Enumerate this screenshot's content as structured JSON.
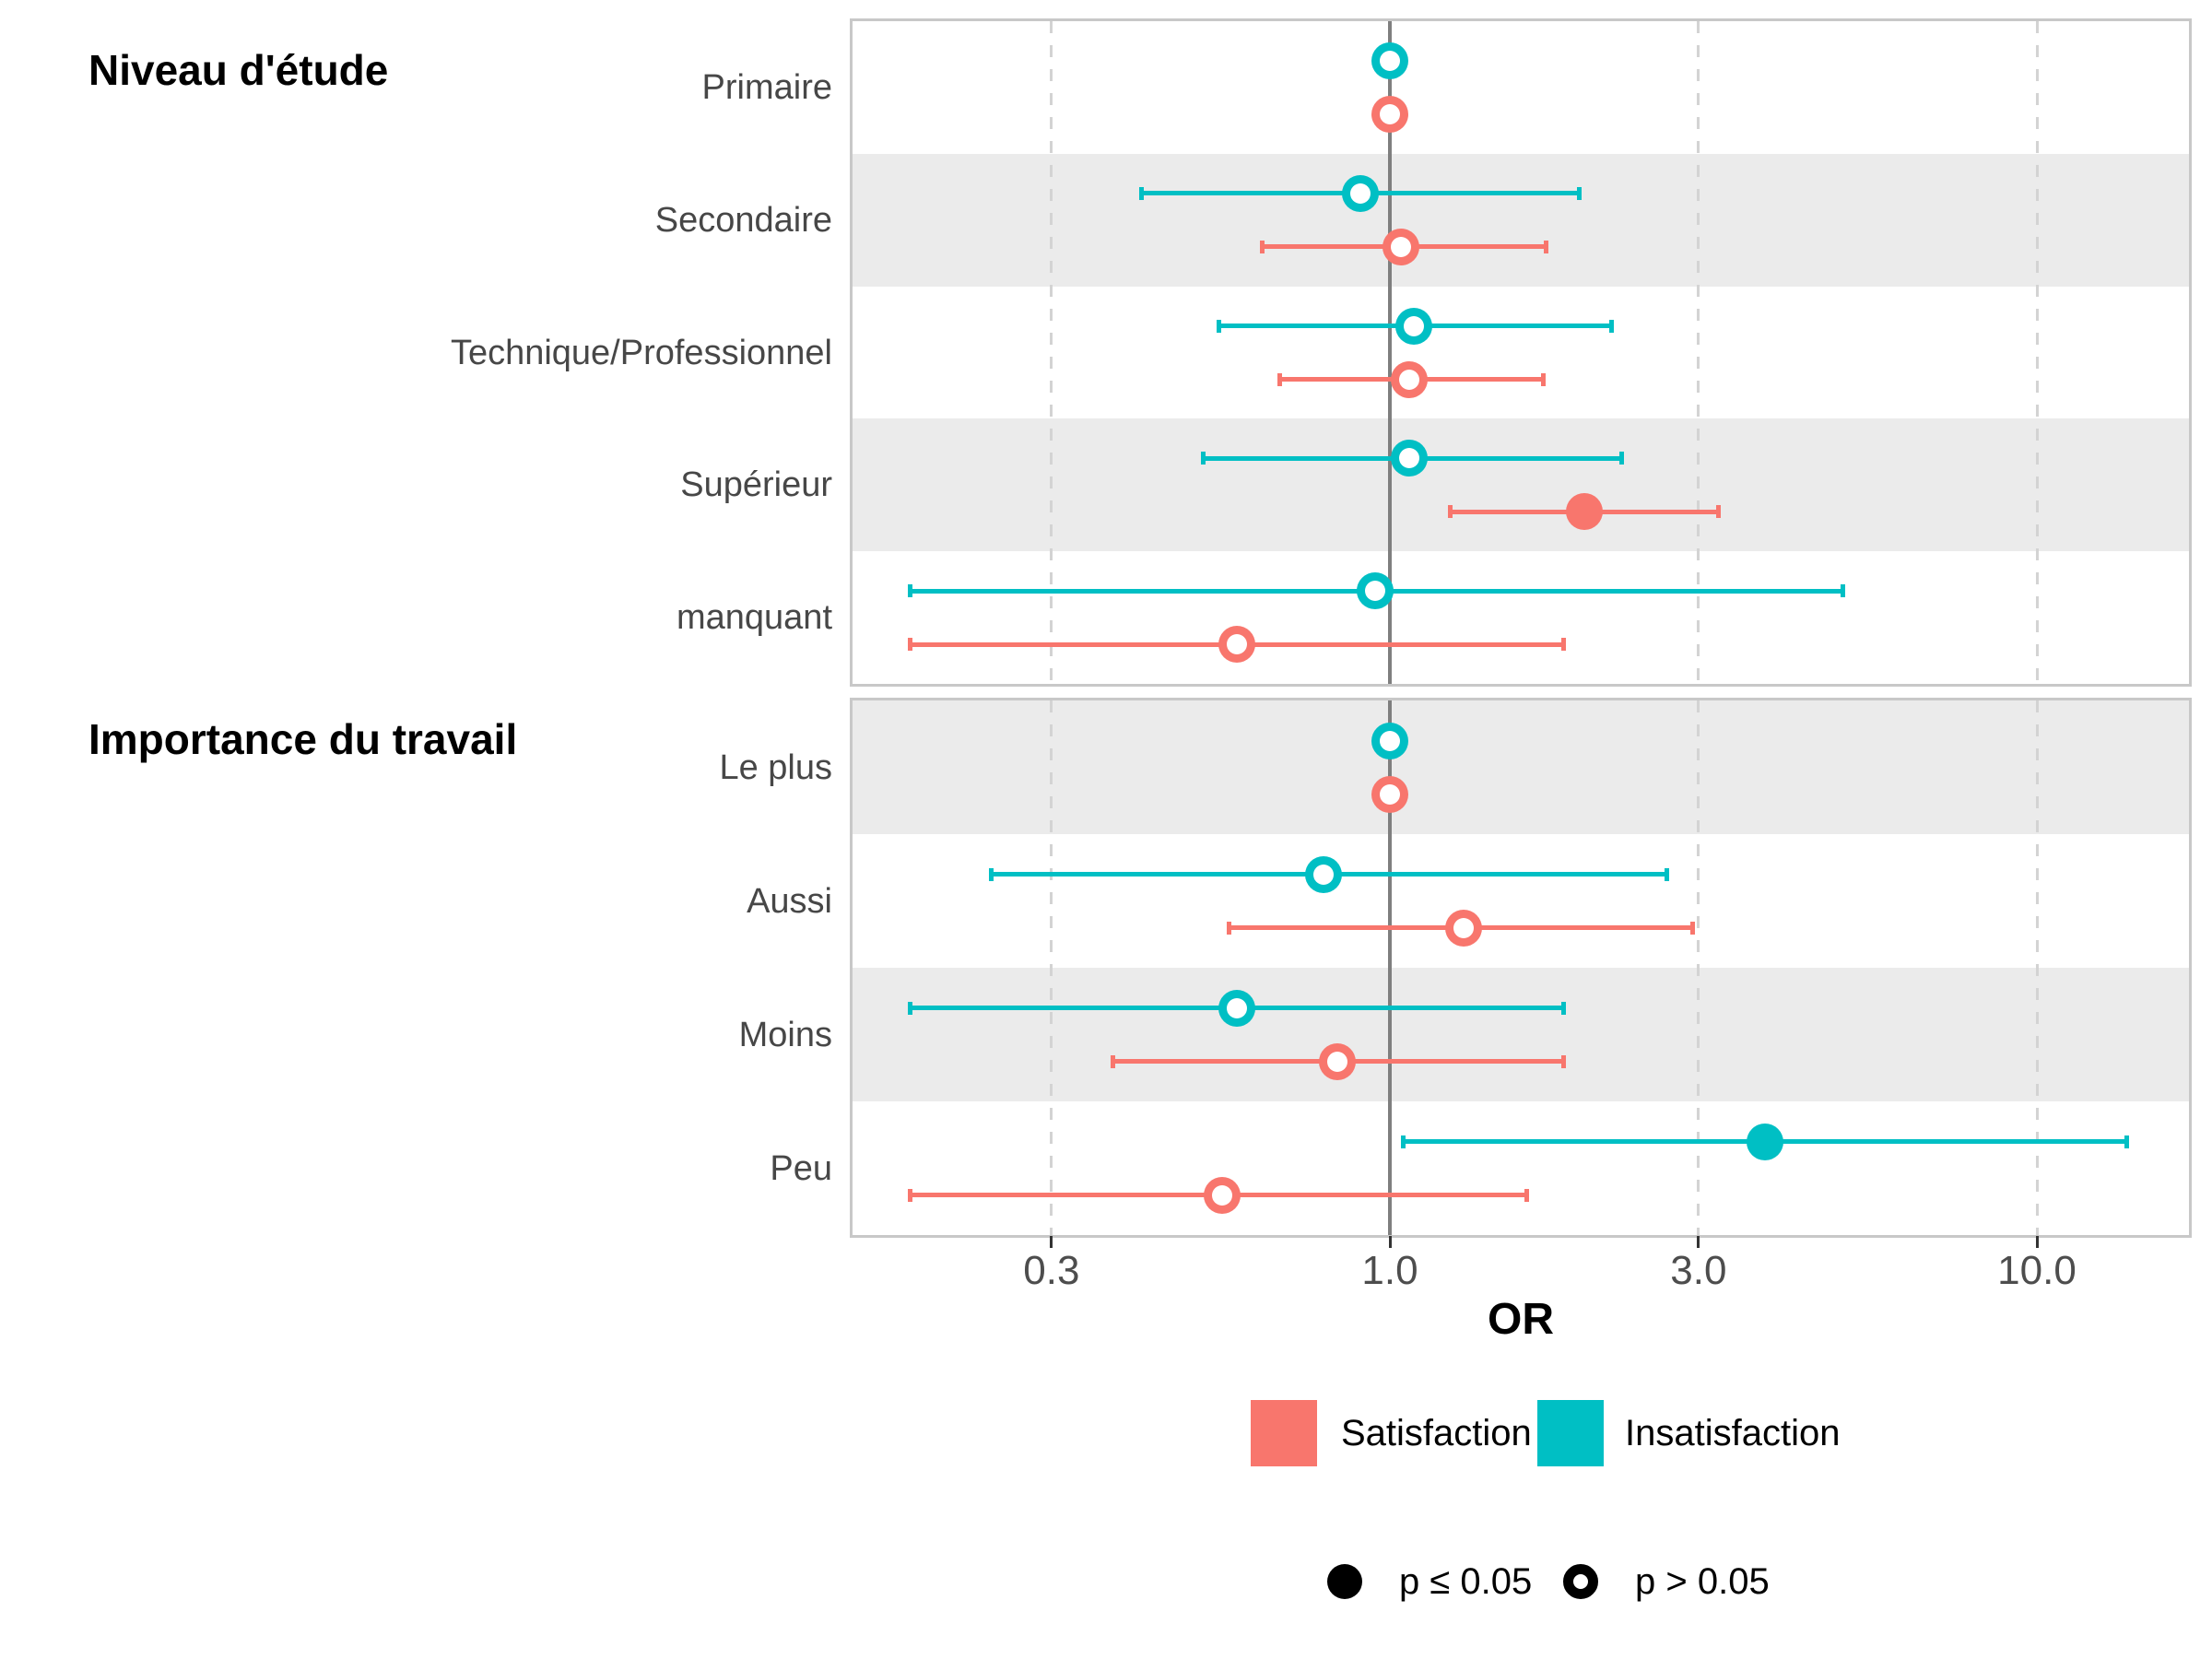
{
  "chart_data": {
    "type": "scatter",
    "subtype": "forest-plot-odds-ratios",
    "x_axis": {
      "label": "OR",
      "scale": "log10",
      "ticks": [
        0.3,
        1.0,
        3.0,
        10.0
      ],
      "tick_labels": [
        "0.3",
        "1.0",
        "3.0",
        "10.0"
      ],
      "range": [
        0.148,
        17.2
      ],
      "reference_line": 1.0,
      "grid": "dashed-vertical-at-ticks"
    },
    "panels": [
      {
        "title": "Niveau d'étude",
        "categories": [
          {
            "label": "Primaire",
            "series": [
              {
                "name": "Insatisfaction",
                "or": 1.0,
                "ci_low": null,
                "ci_high": null,
                "significant": false
              },
              {
                "name": "Satisfaction",
                "or": 1.0,
                "ci_low": null,
                "ci_high": null,
                "significant": false
              }
            ]
          },
          {
            "label": "Secondaire",
            "series": [
              {
                "name": "Insatisfaction",
                "or": 0.9,
                "ci_low": 0.41,
                "ci_high": 1.98,
                "significant": false
              },
              {
                "name": "Satisfaction",
                "or": 1.04,
                "ci_low": 0.63,
                "ci_high": 1.76,
                "significant": false
              }
            ]
          },
          {
            "label": "Technique/Professionnel",
            "series": [
              {
                "name": "Insatisfaction",
                "or": 1.09,
                "ci_low": 0.54,
                "ci_high": 2.22,
                "significant": false
              },
              {
                "name": "Satisfaction",
                "or": 1.07,
                "ci_low": 0.67,
                "ci_high": 1.74,
                "significant": false
              }
            ]
          },
          {
            "label": "Supérieur",
            "series": [
              {
                "name": "Insatisfaction",
                "or": 1.07,
                "ci_low": 0.51,
                "ci_high": 2.3,
                "significant": false
              },
              {
                "name": "Satisfaction",
                "or": 2.0,
                "ci_low": 1.23,
                "ci_high": 3.25,
                "significant": true
              }
            ]
          },
          {
            "label": "manquant",
            "series": [
              {
                "name": "Insatisfaction",
                "or": 0.95,
                "ci_low": 0.18,
                "ci_high": 5.05,
                "significant": false
              },
              {
                "name": "Satisfaction",
                "or": 0.58,
                "ci_low": 0.18,
                "ci_high": 1.87,
                "significant": false
              }
            ]
          }
        ]
      },
      {
        "title": "Importance du travail",
        "categories": [
          {
            "label": "Le plus",
            "series": [
              {
                "name": "Insatisfaction",
                "or": 1.0,
                "ci_low": null,
                "ci_high": null,
                "significant": false
              },
              {
                "name": "Satisfaction",
                "or": 1.0,
                "ci_low": null,
                "ci_high": null,
                "significant": false
              }
            ]
          },
          {
            "label": "Aussi",
            "series": [
              {
                "name": "Insatisfaction",
                "or": 0.79,
                "ci_low": 0.24,
                "ci_high": 2.7,
                "significant": false
              },
              {
                "name": "Satisfaction",
                "or": 1.3,
                "ci_low": 0.56,
                "ci_high": 2.96,
                "significant": false
              }
            ]
          },
          {
            "label": "Moins",
            "series": [
              {
                "name": "Insatisfaction",
                "or": 0.58,
                "ci_low": 0.18,
                "ci_high": 1.87,
                "significant": false
              },
              {
                "name": "Satisfaction",
                "or": 0.83,
                "ci_low": 0.37,
                "ci_high": 1.87,
                "significant": false
              }
            ]
          },
          {
            "label": "Peu",
            "series": [
              {
                "name": "Insatisfaction",
                "or": 3.8,
                "ci_low": 1.04,
                "ci_high": 13.9,
                "significant": true
              },
              {
                "name": "Satisfaction",
                "or": 0.55,
                "ci_low": 0.18,
                "ci_high": 1.64,
                "significant": false
              }
            ]
          }
        ]
      }
    ],
    "series_legend": [
      {
        "name": "Satisfaction",
        "color": "#F8766D"
      },
      {
        "name": "Insatisfaction",
        "color": "#00BFC4"
      }
    ],
    "shape_legend": [
      {
        "label": "p ≤ 0.05",
        "shape": "filled"
      },
      {
        "label": "p > 0.05",
        "shape": "open"
      }
    ],
    "colors": {
      "satisfaction": "#F8766D",
      "insatisfaction": "#00BFC4",
      "reference_line": "#7F7F7F",
      "stripe": "#EBEBEB",
      "panel_border": "#C8C8C8",
      "dashed_grid": "#D3D3D3",
      "axis_text": "#4D4D4D",
      "category_text": "#474747"
    }
  }
}
